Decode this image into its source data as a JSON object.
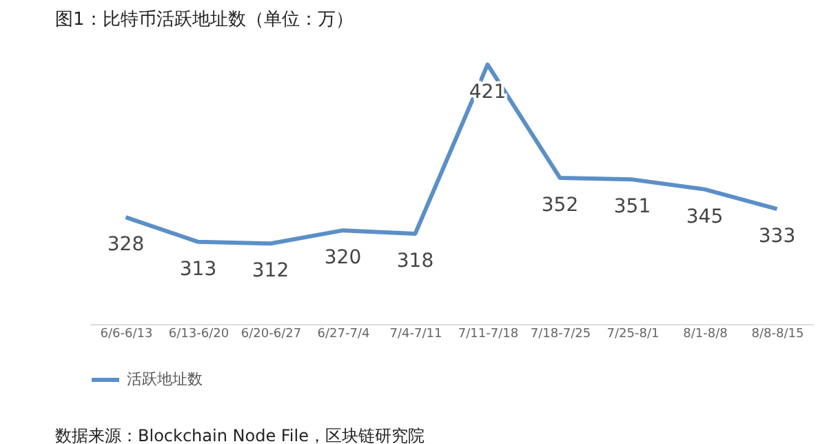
{
  "chart_data": {
    "type": "line",
    "title": "图1：比特币活跃地址数（单位：万）",
    "categories": [
      "6/6-6/13",
      "6/13-6/20",
      "6/20-6/27",
      "6/27-7/4",
      "7/4-7/11",
      "7/11-7/18",
      "7/18-7/25",
      "7/25-8/1",
      "8/1-8/8",
      "8/8-8/15"
    ],
    "series": [
      {
        "name": "活跃地址数",
        "color": "#5b8fc7",
        "values": [
          328,
          313,
          312,
          320,
          318,
          421,
          352,
          351,
          345,
          333
        ]
      }
    ],
    "data_labels": true,
    "legend": "bottom",
    "grid": false,
    "marker": "none",
    "line_style": "solid",
    "tick_labels": "x",
    "annotations": [
      "数据来源：Blockchain Node File，区块链研究院"
    ]
  }
}
